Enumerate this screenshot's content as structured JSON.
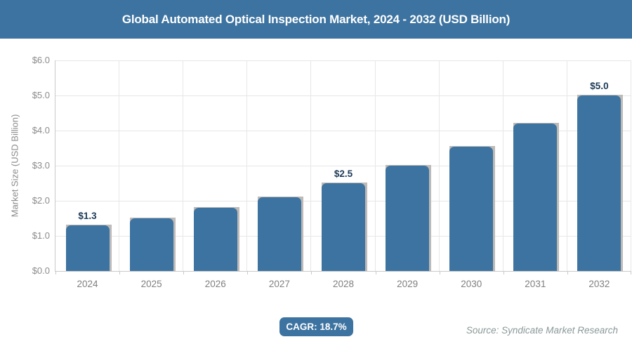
{
  "header": {
    "title": "Global Automated Optical Inspection Market, 2024 - 2032 (USD Billion)"
  },
  "chart_data": {
    "type": "bar",
    "title": "Global Automated Optical Inspection Market, 2024 - 2032 (USD Billion)",
    "xlabel": "",
    "ylabel": "Market Size (USD Billion)",
    "ylim": [
      0,
      6
    ],
    "grid": true,
    "legend": false,
    "categories": [
      "2024",
      "2025",
      "2026",
      "2027",
      "2028",
      "2029",
      "2030",
      "2031",
      "2032"
    ],
    "values": [
      1.3,
      1.5,
      1.8,
      2.1,
      2.5,
      3.0,
      3.55,
      4.2,
      5.0
    ],
    "point_labels": [
      "$1.3",
      null,
      null,
      null,
      "$2.5",
      null,
      null,
      null,
      "$5.0"
    ],
    "yticks": [
      {
        "value": 0,
        "label": "$0.0"
      },
      {
        "value": 1,
        "label": "$1.0"
      },
      {
        "value": 2,
        "label": "$2.0"
      },
      {
        "value": 3,
        "label": "$3.0"
      },
      {
        "value": 4,
        "label": "$4.0"
      },
      {
        "value": 5,
        "label": "$5.0"
      },
      {
        "value": 6,
        "label": "$6.0"
      }
    ]
  },
  "footer": {
    "cagr_label": "CAGR: 18.7%",
    "source": "Source: Syndicate Market Research"
  },
  "colors": {
    "accent_blue": "#3d73a0",
    "bar_fill": "#3d73a0",
    "bar_shadow": "#bdbab7",
    "data_label": "#1c3a57",
    "axis_text": "#8c8c8c",
    "grid_line": "#e7e7e7",
    "axis_line": "#c9c9c9",
    "source_text": "#8a9898"
  }
}
